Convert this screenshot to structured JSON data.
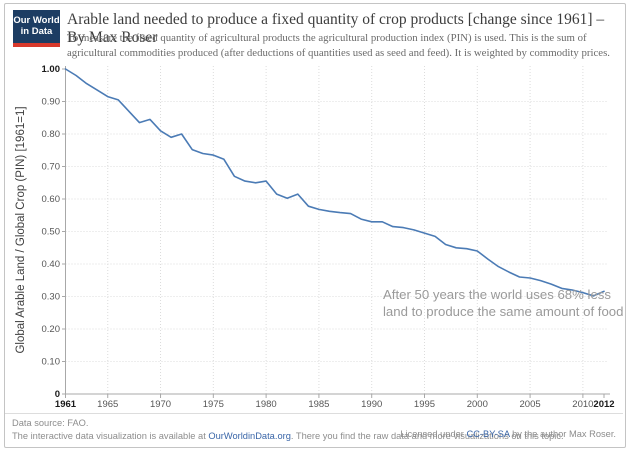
{
  "header": {
    "logo": {
      "line1": "Our World",
      "line2": "in Data",
      "bg_color": "#1d3d63",
      "accent_color": "#d8392c"
    },
    "title": "Arable land needed to produce a fixed quantity of crop products [change since 1961] – By Max Roser",
    "subtitle": "To measure the fixed quantity of agricultural products the agricultural production index (PIN) is used. This is the sum of agricultural commodities produced (after deductions of quantities used as seed and feed). It is weighted by commodity prices."
  },
  "chart_data": {
    "type": "line",
    "title": "Arable land needed to produce a fixed quantity of crop products [change since 1961]",
    "xlabel": "",
    "ylabel": "Global Arable Land / Global Crop (PIN) [1961=1]",
    "xlim": [
      1961,
      2012
    ],
    "ylim": [
      0,
      1
    ],
    "grid": "dotted",
    "line_color": "#4b7bb5",
    "x": [
      1961,
      1962,
      1963,
      1964,
      1965,
      1966,
      1967,
      1968,
      1969,
      1970,
      1971,
      1972,
      1973,
      1974,
      1975,
      1976,
      1977,
      1978,
      1979,
      1980,
      1981,
      1982,
      1983,
      1984,
      1985,
      1986,
      1987,
      1988,
      1989,
      1990,
      1991,
      1992,
      1993,
      1994,
      1995,
      1996,
      1997,
      1998,
      1999,
      2000,
      2001,
      2002,
      2003,
      2004,
      2005,
      2006,
      2007,
      2008,
      2009,
      2010,
      2011,
      2012
    ],
    "values": [
      1.0,
      0.98,
      0.955,
      0.935,
      0.915,
      0.905,
      0.87,
      0.835,
      0.845,
      0.81,
      0.79,
      0.8,
      0.752,
      0.74,
      0.735,
      0.722,
      0.67,
      0.655,
      0.65,
      0.655,
      0.615,
      0.602,
      0.615,
      0.578,
      0.568,
      0.562,
      0.558,
      0.555,
      0.538,
      0.53,
      0.53,
      0.515,
      0.512,
      0.505,
      0.495,
      0.485,
      0.46,
      0.45,
      0.447,
      0.44,
      0.415,
      0.392,
      0.375,
      0.36,
      0.357,
      0.349,
      0.338,
      0.325,
      0.32,
      0.312,
      0.302,
      0.316
    ],
    "yticks": [
      {
        "v": 1.0,
        "label": "1.00",
        "bold": true
      },
      {
        "v": 0.9,
        "label": "0.90",
        "bold": false
      },
      {
        "v": 0.8,
        "label": "0.80",
        "bold": false
      },
      {
        "v": 0.7,
        "label": "0.70",
        "bold": false
      },
      {
        "v": 0.6,
        "label": "0.60",
        "bold": false
      },
      {
        "v": 0.5,
        "label": "0.50",
        "bold": false
      },
      {
        "v": 0.4,
        "label": "0.40",
        "bold": false
      },
      {
        "v": 0.3,
        "label": "0.30",
        "bold": false
      },
      {
        "v": 0.2,
        "label": "0.20",
        "bold": false
      },
      {
        "v": 0.1,
        "label": "0.10",
        "bold": false
      },
      {
        "v": 0.0,
        "label": "0",
        "bold": true
      }
    ],
    "xticks": [
      {
        "v": 1961,
        "label": "1961",
        "bold": true
      },
      {
        "v": 1965,
        "label": "1965",
        "bold": false
      },
      {
        "v": 1970,
        "label": "1970",
        "bold": false
      },
      {
        "v": 1975,
        "label": "1975",
        "bold": false
      },
      {
        "v": 1980,
        "label": "1980",
        "bold": false
      },
      {
        "v": 1985,
        "label": "1985",
        "bold": false
      },
      {
        "v": 1990,
        "label": "1990",
        "bold": false
      },
      {
        "v": 1995,
        "label": "1995",
        "bold": false
      },
      {
        "v": 2000,
        "label": "2000",
        "bold": false
      },
      {
        "v": 2005,
        "label": "2005",
        "bold": false
      },
      {
        "v": 2010,
        "label": "2010",
        "bold": false
      },
      {
        "v": 2012,
        "label": "2012",
        "bold": true
      }
    ],
    "grid_y": [
      0.1,
      0.2,
      0.3,
      0.4,
      0.5,
      0.6,
      0.7,
      0.8,
      0.9
    ],
    "grid_x": [
      1965,
      1970,
      1975,
      1980,
      1985,
      1990,
      1995,
      2000,
      2005,
      2010
    ],
    "annotation": {
      "line1": "After 50 years the world uses 68% less",
      "line2": "land to produce the same amount of food"
    }
  },
  "footer": {
    "source_line": "Data source: FAO.",
    "note_prefix": "The interactive data visualization is available at ",
    "note_link": "OurWorldinData.org",
    "note_suffix": ". There you find the raw data and more visualizations on this topic.",
    "license_prefix": "Licensed under ",
    "license_link": "CC-BY-SA",
    "license_suffix": " by the author Max Roser.",
    "link_color": "#3a66a8"
  }
}
